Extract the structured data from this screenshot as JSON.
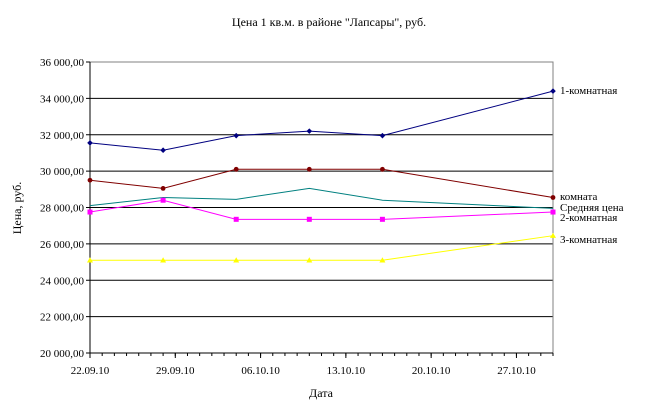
{
  "chart_data": {
    "type": "line",
    "title": "Цена 1 кв.м. в районе \"Лапсары\", руб.",
    "xlabel": "Дата",
    "ylabel": "Цена, руб.",
    "ylim": [
      20000,
      36000
    ],
    "y_ticks": [
      20000,
      22000,
      24000,
      26000,
      28000,
      30000,
      32000,
      34000,
      36000
    ],
    "y_tick_labels": [
      "20 000,00",
      "22 000,00",
      "24 000,00",
      "26 000,00",
      "28 000,00",
      "30 000,00",
      "32 000,00",
      "34 000,00",
      "36 000,00"
    ],
    "x_range": [
      "2010-09-22",
      "2010-10-30"
    ],
    "x_ticks": [
      "2010-09-22",
      "2010-09-29",
      "2010-10-06",
      "2010-10-13",
      "2010-10-20",
      "2010-10-27"
    ],
    "x_tick_labels": [
      "22.09.10",
      "29.09.10",
      "06.10.10",
      "13.10.10",
      "20.10.10",
      "27.10.10"
    ],
    "x": [
      "2010-09-22",
      "2010-09-28",
      "2010-10-04",
      "2010-10-10",
      "2010-10-16",
      "2010-10-30"
    ],
    "grid": "horizontal",
    "legend": "right",
    "series": [
      {
        "name": "1-комнатная",
        "color": "#000080",
        "marker": "diamond",
        "values": [
          31550,
          31150,
          31950,
          32200,
          31950,
          34400
        ]
      },
      {
        "name": "комната",
        "color": "#800000",
        "marker": "circle",
        "values": [
          29500,
          29050,
          30100,
          30100,
          30100,
          28550
        ]
      },
      {
        "name": "Средняя цена",
        "color": "#008080",
        "marker": "none",
        "values": [
          28100,
          28550,
          28450,
          29050,
          28400,
          27950
        ]
      },
      {
        "name": "2-комнатная",
        "color": "#FF00FF",
        "marker": "square",
        "values": [
          27750,
          28400,
          27350,
          27350,
          27350,
          27750
        ]
      },
      {
        "name": "3-комнатная",
        "color": "#FFFF00",
        "marker": "triangle",
        "values": [
          25100,
          25100,
          25100,
          25100,
          25100,
          26450
        ]
      }
    ]
  }
}
